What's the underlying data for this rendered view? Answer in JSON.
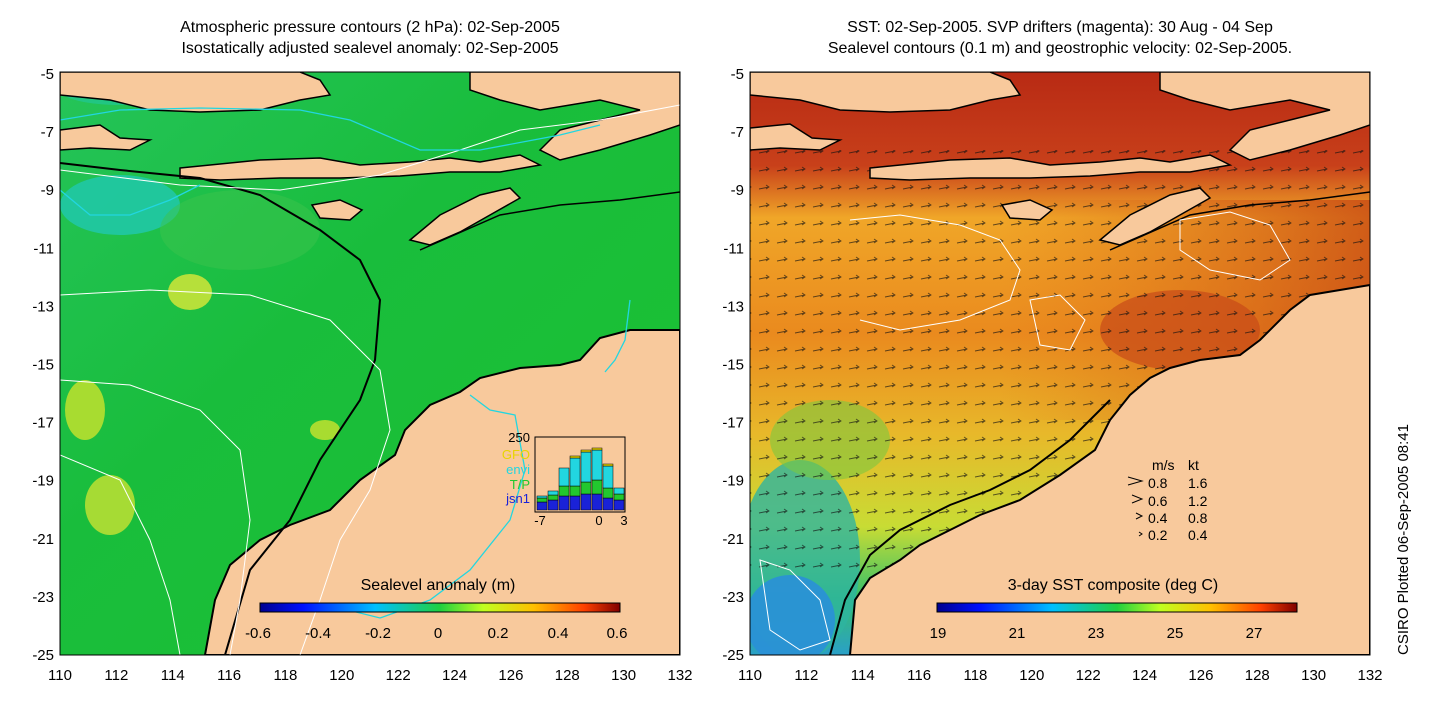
{
  "left_panel": {
    "title_line1": "Atmospheric pressure contours (2 hPa): 02-Sep-2005",
    "title_line2": "Isostatically adjusted sealevel anomaly: 02-Sep-2005",
    "colorbar_label": "Sealevel anomaly (m)",
    "colorbar_ticks": [
      "-0.6",
      "-0.4",
      "-0.2",
      "0",
      "0.2",
      "0.4",
      "0.6"
    ],
    "inset": {
      "y_tick": "250",
      "x_ticks": [
        "-7",
        "0",
        "3"
      ],
      "legend": [
        {
          "label": "GFO",
          "color": "#e8d400"
        },
        {
          "label": "envi",
          "color": "#22d6e0"
        },
        {
          "label": "T/P",
          "color": "#22c82e"
        },
        {
          "label": "jsn1",
          "color": "#1a22d8"
        }
      ]
    }
  },
  "right_panel": {
    "title_line1": "SST: 02-Sep-2005. SVP drifters (magenta): 30 Aug - 04 Sep",
    "title_line2": "Sealevel contours (0.1 m) and geostrophic velocity: 02-Sep-2005.",
    "colorbar_label": "3-day SST composite (deg C)",
    "colorbar_ticks": [
      "19",
      "21",
      "23",
      "25",
      "27"
    ],
    "velocity_legend": {
      "header_ms": "m/s",
      "header_kt": "kt",
      "rows": [
        {
          "ms": "0.8",
          "kt": "1.6"
        },
        {
          "ms": "0.6",
          "kt": "1.2"
        },
        {
          "ms": "0.4",
          "kt": "0.8"
        },
        {
          "ms": "0.2",
          "kt": "0.4"
        }
      ]
    }
  },
  "axes": {
    "lat_ticks": [
      "-5",
      "-7",
      "-9",
      "-11",
      "-13",
      "-15",
      "-17",
      "-19",
      "-21",
      "-23",
      "-25"
    ],
    "lon_ticks": [
      "110",
      "112",
      "114",
      "116",
      "118",
      "120",
      "122",
      "124",
      "126",
      "128",
      "130",
      "132"
    ]
  },
  "credit": "CSIRO Plotted 06-Sep-2005 08:41",
  "colors": {
    "land": "#f8c99c",
    "ocean_sla": "#1fbf3c",
    "sst_warm": "#e06a10",
    "sst_hot": "#b02a10",
    "sst_mid": "#f0b020"
  }
}
